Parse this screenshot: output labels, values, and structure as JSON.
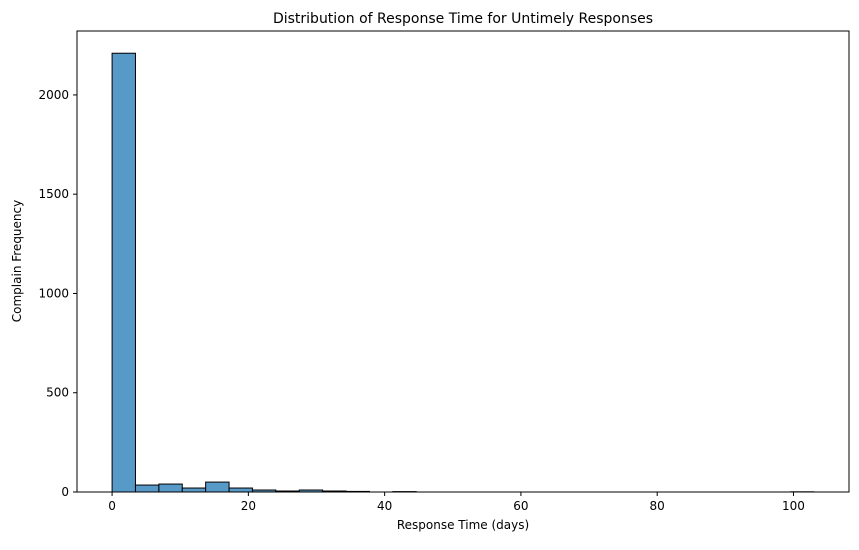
{
  "chart_data": {
    "type": "bar",
    "title": "Distribution of Response Time for Untimely Responses",
    "xlabel": "Response Time (days)",
    "ylabel": "Complain Frequency",
    "xlim": [
      -5.15,
      108.15
    ],
    "ylim": [
      0,
      2322
    ],
    "xticks": [
      0,
      20,
      40,
      60,
      80,
      100
    ],
    "xtick_labels": [
      "0",
      "20",
      "40",
      "60",
      "80",
      "100"
    ],
    "yticks": [
      0,
      500,
      1000,
      1500,
      2000
    ],
    "ytick_labels": [
      "0",
      "500",
      "1000",
      "1500",
      "2000"
    ],
    "grid": false,
    "legend": "none",
    "bin_edges": [
      0,
      3.43,
      6.87,
      10.3,
      13.73,
      17.17,
      20.6,
      24.03,
      27.47,
      30.9,
      34.33,
      37.77,
      41.2,
      44.63,
      48.07,
      51.5,
      54.93,
      58.37,
      61.8,
      65.23,
      68.67,
      72.1,
      75.53,
      78.97,
      82.4,
      85.83,
      89.27,
      92.7,
      96.13,
      99.57,
      103
    ],
    "values": [
      2210,
      35,
      40,
      20,
      50,
      20,
      10,
      5,
      10,
      5,
      3,
      0,
      2,
      0,
      0,
      0,
      0,
      0,
      0,
      0,
      0,
      0,
      0,
      0,
      0,
      0,
      0,
      0,
      0,
      1
    ],
    "bar_color": "#5799c7",
    "edge_color": "#000000"
  }
}
